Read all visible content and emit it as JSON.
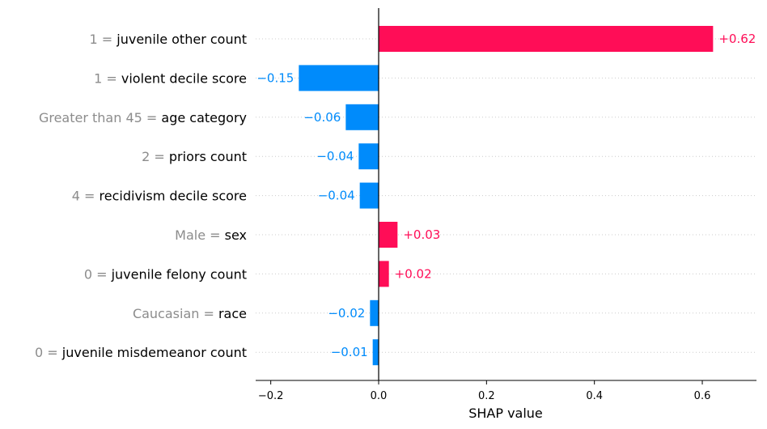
{
  "chart_data": {
    "type": "bar",
    "orientation": "horizontal",
    "xlabel": "SHAP value",
    "xlim": [
      -0.23,
      0.7
    ],
    "xticks": [
      -0.2,
      0.0,
      0.2,
      0.4,
      0.6
    ],
    "xtick_labels": [
      "−0.2",
      "0.0",
      "0.2",
      "0.4",
      "0.6"
    ],
    "grid": "horizontal dotted row lines",
    "colors": {
      "positive": "#ff0d57",
      "negative": "#008bfb",
      "feature_value": "#8c8c8c",
      "feature_name": "#000000"
    },
    "rows": [
      {
        "value_text": "1",
        "feature": "juvenile other count",
        "shap": 0.62,
        "label": "+0.62"
      },
      {
        "value_text": "1",
        "feature": "violent decile score",
        "shap": -0.148,
        "label": "−0.15"
      },
      {
        "value_text": "Greater than 45",
        "feature": "age category",
        "shap": -0.061,
        "label": "−0.06"
      },
      {
        "value_text": "2",
        "feature": "priors count",
        "shap": -0.037,
        "label": "−0.04"
      },
      {
        "value_text": "4",
        "feature": "recidivism decile score",
        "shap": -0.035,
        "label": "−0.04"
      },
      {
        "value_text": "Male",
        "feature": "sex",
        "shap": 0.035,
        "label": "+0.03"
      },
      {
        "value_text": "0",
        "feature": "juvenile felony count",
        "shap": 0.019,
        "label": "+0.02"
      },
      {
        "value_text": "Caucasian",
        "feature": "race",
        "shap": -0.016,
        "label": "−0.02"
      },
      {
        "value_text": "0",
        "feature": "juvenile misdemeanor count",
        "shap": -0.011,
        "label": "−0.01"
      }
    ]
  }
}
